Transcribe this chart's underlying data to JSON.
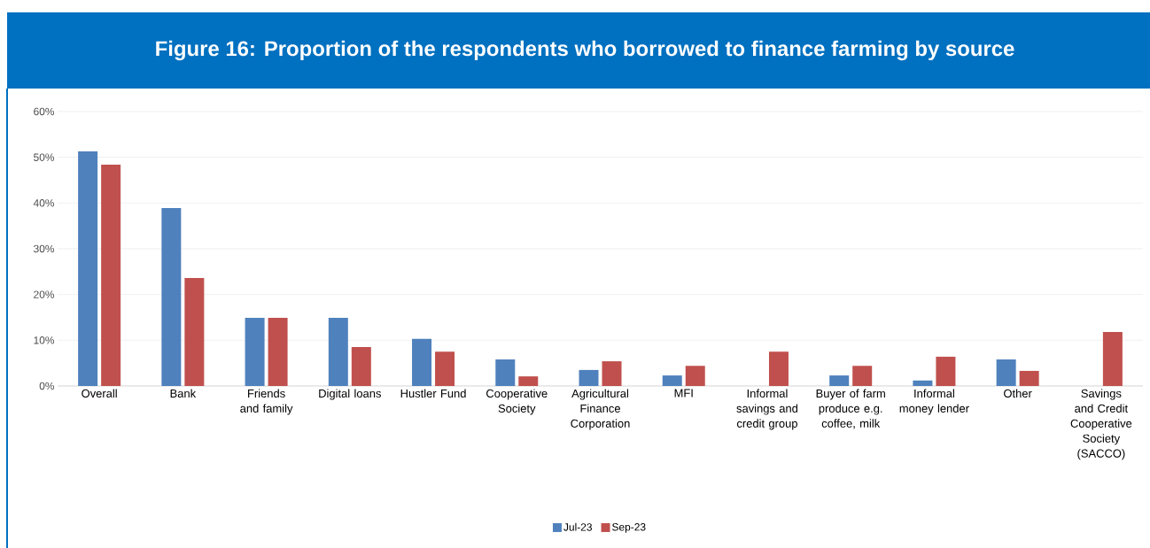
{
  "chart_data": {
    "type": "bar",
    "title": "Figure 16: Proportion of the respondents who borrowed to finance farming by source",
    "categories": [
      "Overall",
      "Bank",
      "Friends and family",
      "Digital loans",
      "Hustler Fund",
      "Cooperative Society",
      "Agricultural Finance Corporation",
      "MFI",
      "Informal savings and credit group",
      "Buyer of farm produce e.g. coffee, milk",
      "Informal money lender",
      "Other",
      "Savings and Credit Cooperative Society (SACCO)"
    ],
    "series": [
      {
        "name": "Jul-23",
        "color": "#4f81bd",
        "values": [
          51.3,
          38.9,
          14.9,
          14.9,
          10.3,
          5.8,
          3.5,
          2.3,
          null,
          2.3,
          1.2,
          5.8,
          null
        ]
      },
      {
        "name": "Sep-23",
        "color": "#c0504d",
        "values": [
          48.4,
          23.6,
          14.9,
          8.5,
          7.5,
          2.1,
          5.4,
          4.4,
          7.5,
          4.4,
          6.4,
          3.3,
          11.8
        ]
      }
    ],
    "ylim": [
      0,
      60
    ],
    "yticks": [
      {
        "value": 0,
        "label": "0%"
      },
      {
        "value": 10,
        "label": "10%"
      },
      {
        "value": 20,
        "label": "20%"
      },
      {
        "value": 30,
        "label": "30%"
      },
      {
        "value": 40,
        "label": "40%"
      },
      {
        "value": 50,
        "label": "50%"
      },
      {
        "value": 60,
        "label": "60%"
      }
    ],
    "grid": "y",
    "legend": "bottom"
  }
}
